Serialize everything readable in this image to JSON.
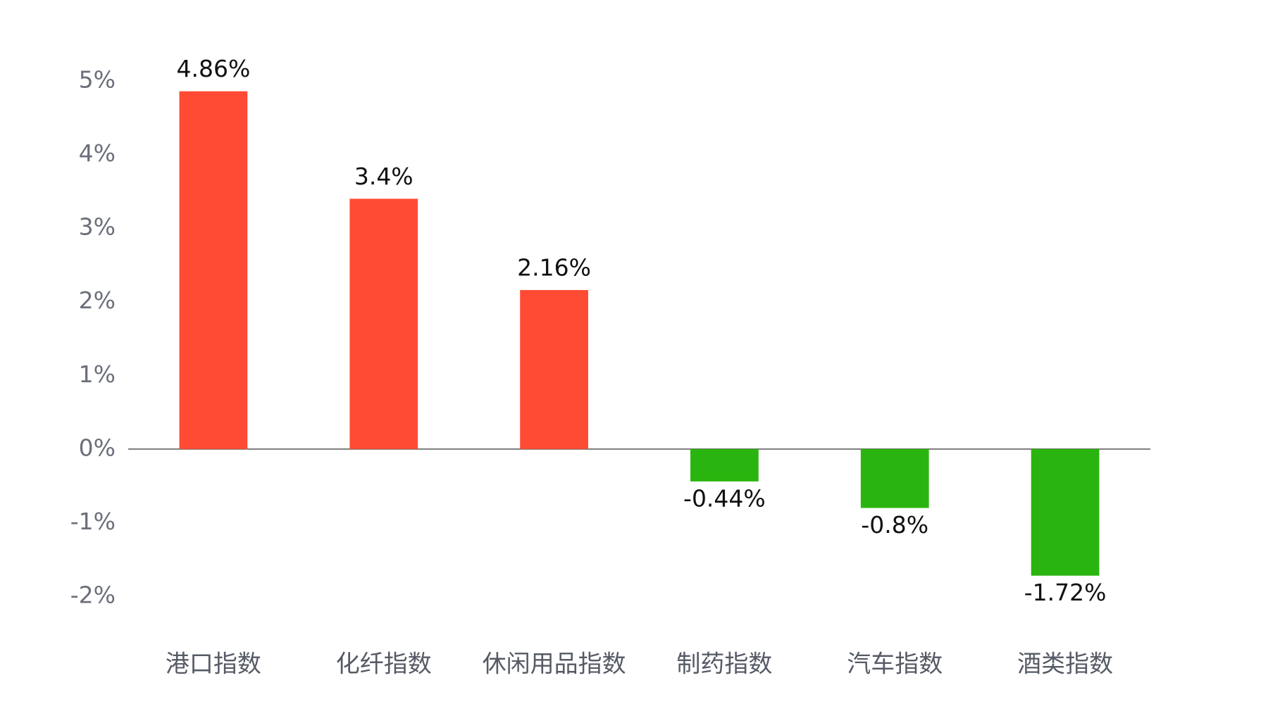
{
  "chart_data": {
    "type": "bar",
    "categories": [
      "港口指数",
      "化纤指数",
      "休闲用品指数",
      "制药指数",
      "汽车指数",
      "酒类指数"
    ],
    "values": [
      4.86,
      3.4,
      2.16,
      -0.44,
      -0.8,
      -1.72
    ],
    "value_labels": [
      "4.86%",
      "3.4%",
      "2.16%",
      "-0.44%",
      "-0.8%",
      "-1.72%"
    ],
    "positive_color": "#ff4b33",
    "negative_color": "#2ab40f",
    "ylim": [
      -2,
      5
    ],
    "yticks": [
      {
        "value": -2,
        "label": "-2%"
      },
      {
        "value": -1,
        "label": "-1%"
      },
      {
        "value": 0,
        "label": "0%"
      },
      {
        "value": 1,
        "label": "1%"
      },
      {
        "value": 2,
        "label": "2%"
      },
      {
        "value": 3,
        "label": "3%"
      },
      {
        "value": 4,
        "label": "4%"
      },
      {
        "value": 5,
        "label": "5%"
      }
    ],
    "grid": false
  }
}
